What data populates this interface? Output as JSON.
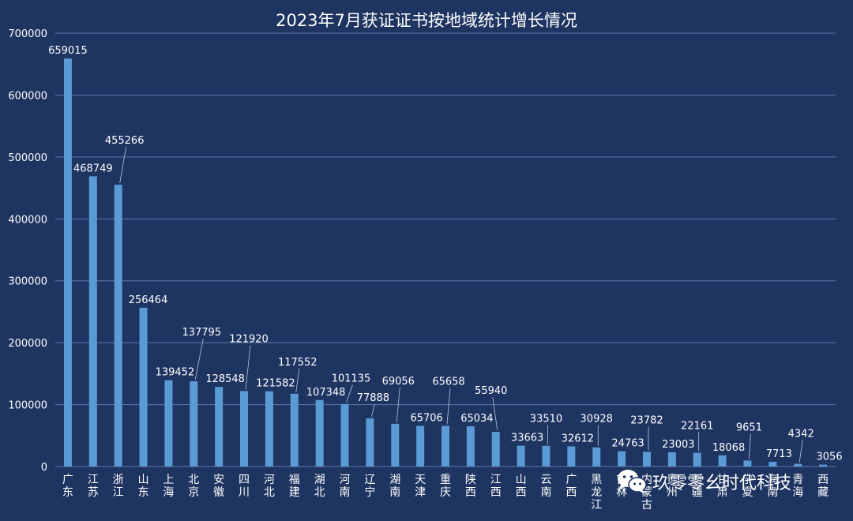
{
  "watermark": {
    "text": "玖零零幺时代科技",
    "icon": "wechat-logo-icon"
  },
  "colors": {
    "background": "#1e3461",
    "bar": "#5b9bd5",
    "text": "#ffffff",
    "grid": "#5d7aaa"
  },
  "chart_data": {
    "type": "bar",
    "title": "2023年7月获证证书按地域统计增长情况",
    "xlabel": "",
    "ylabel": "",
    "ylim": [
      0,
      700000
    ],
    "yticks": [
      0,
      100000,
      200000,
      300000,
      400000,
      500000,
      600000,
      700000
    ],
    "grid": true,
    "legend": "none",
    "categories": [
      "广东",
      "江苏",
      "浙江",
      "山东",
      "上海",
      "北京",
      "安徽",
      "四川",
      "河北",
      "福建",
      "湖北",
      "河南",
      "辽宁",
      "湖南",
      "天津",
      "重庆",
      "陕西",
      "江西",
      "山西",
      "云南",
      "广西",
      "黑龙江",
      "吉林",
      "内蒙古",
      "贵州",
      "新疆",
      "甘肃",
      "宁夏",
      "海南",
      "青海",
      "西藏"
    ],
    "values": [
      659015,
      468749,
      455266,
      256464,
      139452,
      137795,
      128548,
      121920,
      121582,
      117552,
      107348,
      101135,
      77888,
      69056,
      65706,
      65658,
      65034,
      55940,
      33663,
      33510,
      32612,
      30928,
      24763,
      23782,
      23003,
      22161,
      18068,
      9651,
      7713,
      4342,
      3056
    ]
  }
}
